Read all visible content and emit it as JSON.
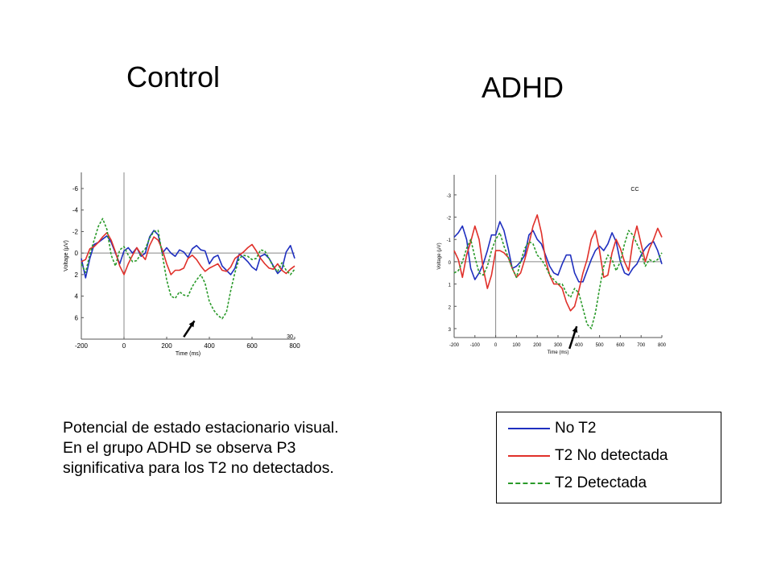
{
  "titles": {
    "control": "Control",
    "adhd": "ADHD"
  },
  "caption": [
    "Potencial de estado estacionario visual.",
    "En el grupo ADHD se observa P3",
    "significativa para los T2 no detectados."
  ],
  "legend": {
    "items": [
      {
        "label": "No T2",
        "color": "#1f2fbf",
        "style": "solid"
      },
      {
        "label": "T2 No detectada",
        "color": "#e0302a",
        "style": "solid"
      },
      {
        "label": "T2 Detectada",
        "color": "#2a9a2a",
        "style": "dashed"
      }
    ]
  },
  "chart_data": [
    {
      "type": "line",
      "title": "",
      "xlabel": "Time (ms)",
      "ylabel": "Voltage (μV)",
      "xlim": [
        -200,
        800
      ],
      "ylim": [
        -7.5,
        8
      ],
      "y_inverted": true,
      "xticks": [
        -200,
        0,
        200,
        400,
        600,
        800
      ],
      "yticks": [
        -6,
        -4,
        -2,
        0,
        2,
        4,
        6
      ],
      "annotation_text": "30",
      "arrow": {
        "from": [
          280,
          7.8
        ],
        "to": [
          330,
          6.3
        ]
      },
      "series": [
        {
          "name": "No T2",
          "color": "#1f2fbf",
          "dash": false,
          "x": [
            -200,
            -180,
            -160,
            -140,
            -120,
            -100,
            -80,
            -60,
            -40,
            -20,
            0,
            20,
            40,
            60,
            80,
            100,
            120,
            140,
            160,
            180,
            200,
            220,
            240,
            260,
            280,
            300,
            320,
            340,
            360,
            380,
            400,
            420,
            440,
            460,
            480,
            500,
            520,
            540,
            560,
            580,
            600,
            620,
            640,
            660,
            680,
            700,
            720,
            740,
            760,
            780,
            800
          ],
          "y": [
            0.5,
            2.3,
            0.5,
            -0.8,
            -1,
            -1.3,
            -1.6,
            -1,
            0,
            1,
            -0.2,
            -0.5,
            0,
            -0.5,
            0.3,
            0,
            -1.5,
            -2.1,
            -1.7,
            0,
            -0.5,
            0,
            0.3,
            -0.3,
            -0.1,
            0.4,
            -0.4,
            -0.7,
            -0.3,
            -0.2,
            1,
            0.4,
            0.2,
            1.2,
            1.6,
            2.0,
            1.4,
            0.1,
            0.4,
            0.8,
            1.3,
            1.6,
            0.3,
            0.1,
            0.5,
            1.2,
            1.9,
            1.5,
            -0.1,
            -0.7,
            0.5
          ]
        },
        {
          "name": "T2 No detectada",
          "color": "#e0302a",
          "dash": false,
          "x": [
            -200,
            -180,
            -160,
            -140,
            -120,
            -100,
            -80,
            -60,
            -40,
            -20,
            0,
            20,
            40,
            60,
            80,
            100,
            120,
            140,
            160,
            180,
            200,
            220,
            240,
            260,
            280,
            300,
            320,
            340,
            360,
            380,
            400,
            420,
            440,
            460,
            480,
            500,
            520,
            540,
            560,
            580,
            600,
            620,
            640,
            660,
            680,
            700,
            720,
            740,
            760,
            780,
            800
          ],
          "y": [
            0.8,
            0.6,
            -0.4,
            -0.6,
            -1,
            -1.5,
            -1.9,
            -1.2,
            -0.1,
            1.2,
            2.0,
            1.0,
            0.2,
            -0.5,
            0.1,
            0.6,
            -0.7,
            -1.5,
            -1.2,
            -0.3,
            1.0,
            2.0,
            1.6,
            1.6,
            1.4,
            0.5,
            0.2,
            0.6,
            1.2,
            1.7,
            1.4,
            1.2,
            1.0,
            1.6,
            1.7,
            1.3,
            0.5,
            0.2,
            -0.1,
            -0.5,
            -0.8,
            -0.2,
            0.5,
            1.0,
            1.4,
            1.5,
            1.0,
            1.6,
            1.9,
            1.5,
            1.2
          ]
        },
        {
          "name": "T2 Detectada",
          "color": "#2a9a2a",
          "dash": true,
          "x": [
            -200,
            -180,
            -160,
            -140,
            -120,
            -100,
            -80,
            -60,
            -40,
            -20,
            0,
            20,
            40,
            60,
            80,
            100,
            120,
            140,
            160,
            180,
            200,
            220,
            240,
            260,
            280,
            300,
            320,
            340,
            360,
            380,
            400,
            420,
            440,
            460,
            480,
            500,
            520,
            540,
            560,
            580,
            600,
            620,
            640,
            660,
            680,
            700,
            720,
            740,
            760,
            780,
            800
          ],
          "y": [
            1.0,
            1.8,
            0.1,
            -1.2,
            -2.5,
            -3.2,
            -2.2,
            0.2,
            1.2,
            -0.3,
            -0.6,
            0.2,
            0.8,
            0.7,
            0.0,
            -0.4,
            -1.4,
            -2.0,
            -2.1,
            0.2,
            2.5,
            4.0,
            4.2,
            3.6,
            3.9,
            4.0,
            3.1,
            2.5,
            2.0,
            2.8,
            4.5,
            5.3,
            5.8,
            6.1,
            5.5,
            3.5,
            1.8,
            0.5,
            0.2,
            0.3,
            0.6,
            0.5,
            -0.3,
            -0.2,
            0.5,
            1.3,
            1.7,
            0.9,
            1.6,
            2.0,
            1.5
          ]
        }
      ]
    },
    {
      "type": "line",
      "title": "CC",
      "xlabel": "Time (ms)",
      "ylabel": "Voltage (μV)",
      "xlim": [
        -200,
        800
      ],
      "ylim": [
        -3.9,
        3.4
      ],
      "y_inverted": true,
      "xticks": [
        -200,
        -100,
        0,
        100,
        200,
        300,
        400,
        500,
        600,
        700,
        800
      ],
      "yticks": [
        -3,
        -2,
        -1,
        0,
        1,
        2,
        3
      ],
      "arrow": {
        "from": [
          355,
          3.9
        ],
        "to": [
          390,
          2.9
        ]
      },
      "series": [
        {
          "name": "No T2",
          "color": "#1f2fbf",
          "dash": false,
          "x": [
            -200,
            -180,
            -160,
            -140,
            -120,
            -100,
            -80,
            -60,
            -40,
            -20,
            0,
            20,
            40,
            60,
            80,
            100,
            120,
            140,
            160,
            180,
            200,
            220,
            240,
            260,
            280,
            300,
            320,
            340,
            360,
            380,
            400,
            420,
            440,
            460,
            480,
            500,
            520,
            540,
            560,
            580,
            600,
            620,
            640,
            660,
            680,
            700,
            720,
            740,
            760,
            780,
            800
          ],
          "y": [
            -1.1,
            -1.3,
            -1.6,
            -1.0,
            0.3,
            0.8,
            0.5,
            0.1,
            -0.5,
            -1.2,
            -1.2,
            -1.8,
            -1.4,
            -0.6,
            0.3,
            0.2,
            0.0,
            -0.3,
            -1.2,
            -1.4,
            -1.0,
            -0.8,
            -0.3,
            0.2,
            0.5,
            0.6,
            0.1,
            -0.3,
            -0.3,
            0.5,
            0.9,
            0.9,
            0.4,
            -0.1,
            -0.5,
            -0.7,
            -0.5,
            -0.8,
            -1.3,
            -0.9,
            0.0,
            0.5,
            0.6,
            0.3,
            0.1,
            -0.3,
            -0.6,
            -0.8,
            -0.9,
            -0.5,
            0.1
          ]
        },
        {
          "name": "T2 No detectada",
          "color": "#e0302a",
          "dash": false,
          "x": [
            -200,
            -180,
            -160,
            -140,
            -120,
            -100,
            -80,
            -60,
            -40,
            -20,
            0,
            20,
            40,
            60,
            80,
            100,
            120,
            140,
            160,
            180,
            200,
            220,
            240,
            260,
            280,
            300,
            320,
            340,
            360,
            380,
            400,
            420,
            440,
            460,
            480,
            500,
            520,
            540,
            560,
            580,
            600,
            620,
            640,
            660,
            680,
            700,
            720,
            740,
            760,
            780,
            800
          ],
          "y": [
            -0.5,
            -0.1,
            0.7,
            -0.3,
            -0.9,
            -1.6,
            -1.0,
            0.3,
            1.2,
            0.6,
            -0.5,
            -0.5,
            -0.4,
            -0.2,
            0.3,
            0.7,
            0.5,
            -0.1,
            -0.8,
            -1.6,
            -2.1,
            -1.3,
            -0.1,
            0.6,
            1.0,
            1.0,
            1.2,
            1.8,
            2.2,
            2.0,
            1.3,
            0.5,
            -0.1,
            -1.0,
            -1.4,
            -0.5,
            0.7,
            0.6,
            -0.4,
            -1.0,
            -0.6,
            0.0,
            0.4,
            -0.9,
            -1.6,
            -0.8,
            0.0,
            -0.6,
            -1.0,
            -1.5,
            -1.1
          ]
        },
        {
          "name": "T2 Detectada",
          "color": "#2a9a2a",
          "dash": true,
          "x": [
            -200,
            -180,
            -160,
            -140,
            -120,
            -100,
            -80,
            -60,
            -40,
            -20,
            0,
            20,
            40,
            60,
            80,
            100,
            120,
            140,
            160,
            180,
            200,
            220,
            240,
            260,
            280,
            300,
            320,
            340,
            360,
            380,
            400,
            420,
            440,
            460,
            480,
            500,
            520,
            540,
            560,
            580,
            600,
            620,
            640,
            660,
            680,
            700,
            720,
            740,
            760,
            780,
            800
          ],
          "y": [
            0.5,
            0.4,
            0.0,
            -0.6,
            -1.0,
            -0.2,
            0.5,
            0.6,
            0.2,
            -0.5,
            -1.0,
            -1.3,
            -0.7,
            -0.2,
            0.3,
            0.7,
            0.0,
            -0.6,
            -0.9,
            -0.8,
            -0.3,
            -0.1,
            0.2,
            0.6,
            0.8,
            1.0,
            1.0,
            1.4,
            1.6,
            1.2,
            1.4,
            2.1,
            2.8,
            3.0,
            2.3,
            1.2,
            0.2,
            -0.3,
            -0.1,
            0.4,
            0.0,
            -0.8,
            -1.4,
            -1.2,
            -0.8,
            -0.4,
            0.2,
            -0.1,
            0.0,
            -0.1,
            -0.4
          ]
        }
      ]
    }
  ]
}
